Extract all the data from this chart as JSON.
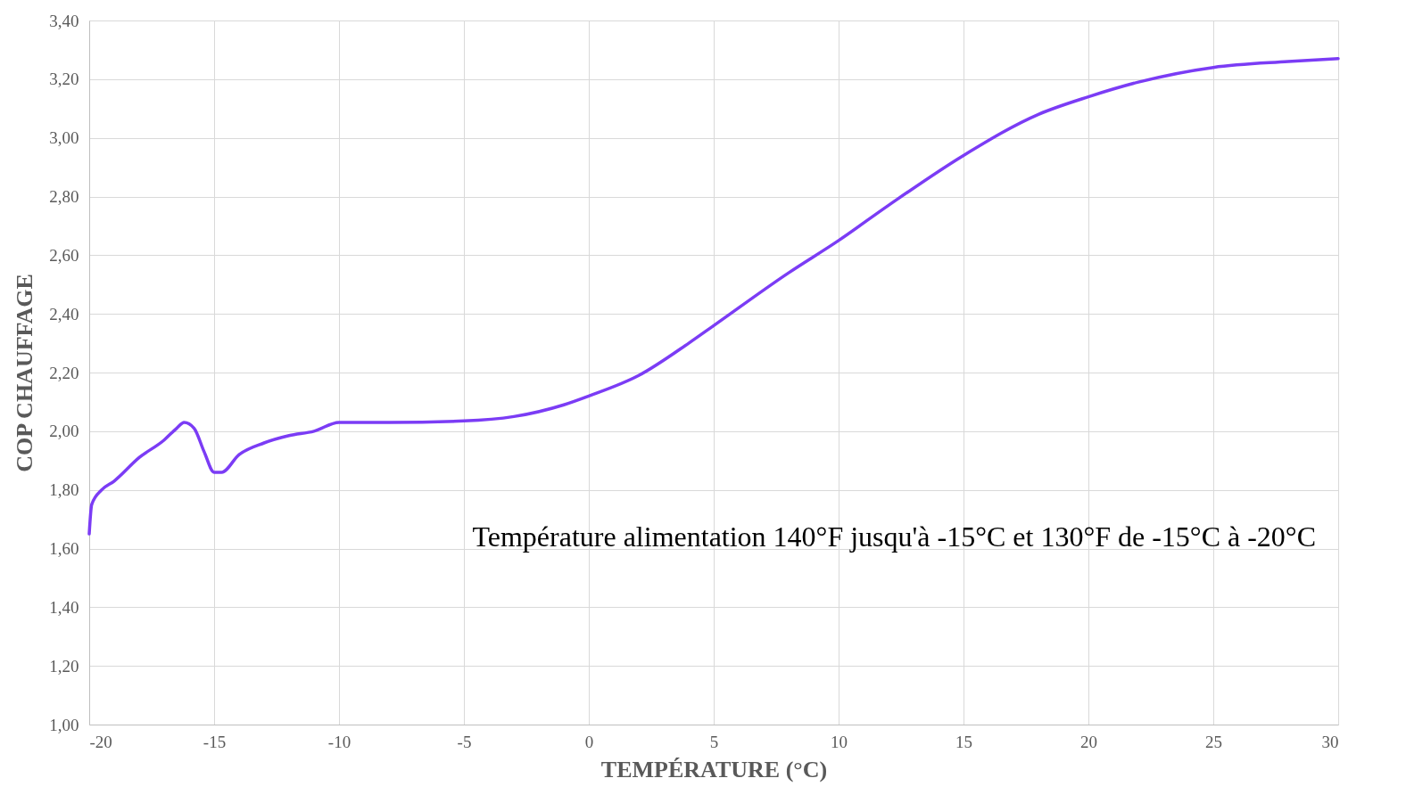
{
  "chart_data": {
    "type": "line",
    "xlabel": "TEMPÉRATURE (°C)",
    "ylabel": "COP CHAUFFAGE",
    "annotations": [
      "Température alimentation 140°F jusqu'à -15°C et 130°F de -15°C à -20°C"
    ],
    "x": [
      -20,
      -19.9,
      -19.5,
      -19,
      -18,
      -17,
      -16.5,
      -16.2,
      -15.8,
      -15.4,
      -15,
      -14.7,
      -14,
      -13,
      -12,
      -11,
      -10,
      -8,
      -5,
      -3,
      -1,
      0,
      2,
      4,
      5,
      8,
      10,
      12,
      15,
      18,
      20,
      22,
      25,
      28,
      30
    ],
    "series": [
      {
        "color": "#7b3cf5",
        "values": [
          1.65,
          1.75,
          1.8,
          1.83,
          1.91,
          1.97,
          2.01,
          2.03,
          2.01,
          1.93,
          1.86,
          1.86,
          1.92,
          1.96,
          1.985,
          2.0,
          2.03,
          2.03,
          2.035,
          2.05,
          2.09,
          2.12,
          2.19,
          2.3,
          2.36,
          2.54,
          2.65,
          2.77,
          2.94,
          3.08,
          3.14,
          3.19,
          3.24,
          3.26,
          3.27
        ]
      }
    ],
    "xlim": [
      -20,
      30
    ],
    "ylim": [
      1.0,
      3.4
    ],
    "xticks": [
      -20,
      -15,
      -10,
      -5,
      0,
      5,
      10,
      15,
      20,
      25,
      30
    ],
    "yticks": [
      {
        "value": 1.0,
        "label": "1,00"
      },
      {
        "value": 1.2,
        "label": "1,20"
      },
      {
        "value": 1.4,
        "label": "1,40"
      },
      {
        "value": 1.6,
        "label": "1,60"
      },
      {
        "value": 1.8,
        "label": "1,80"
      },
      {
        "value": 2.0,
        "label": "2,00"
      },
      {
        "value": 2.2,
        "label": "2,20"
      },
      {
        "value": 2.4,
        "label": "2,40"
      },
      {
        "value": 2.6,
        "label": "2,60"
      },
      {
        "value": 2.8,
        "label": "2,80"
      },
      {
        "value": 3.0,
        "label": "3,00"
      },
      {
        "value": 3.2,
        "label": "3,20"
      },
      {
        "value": 3.4,
        "label": "3,40"
      }
    ],
    "grid": true
  }
}
